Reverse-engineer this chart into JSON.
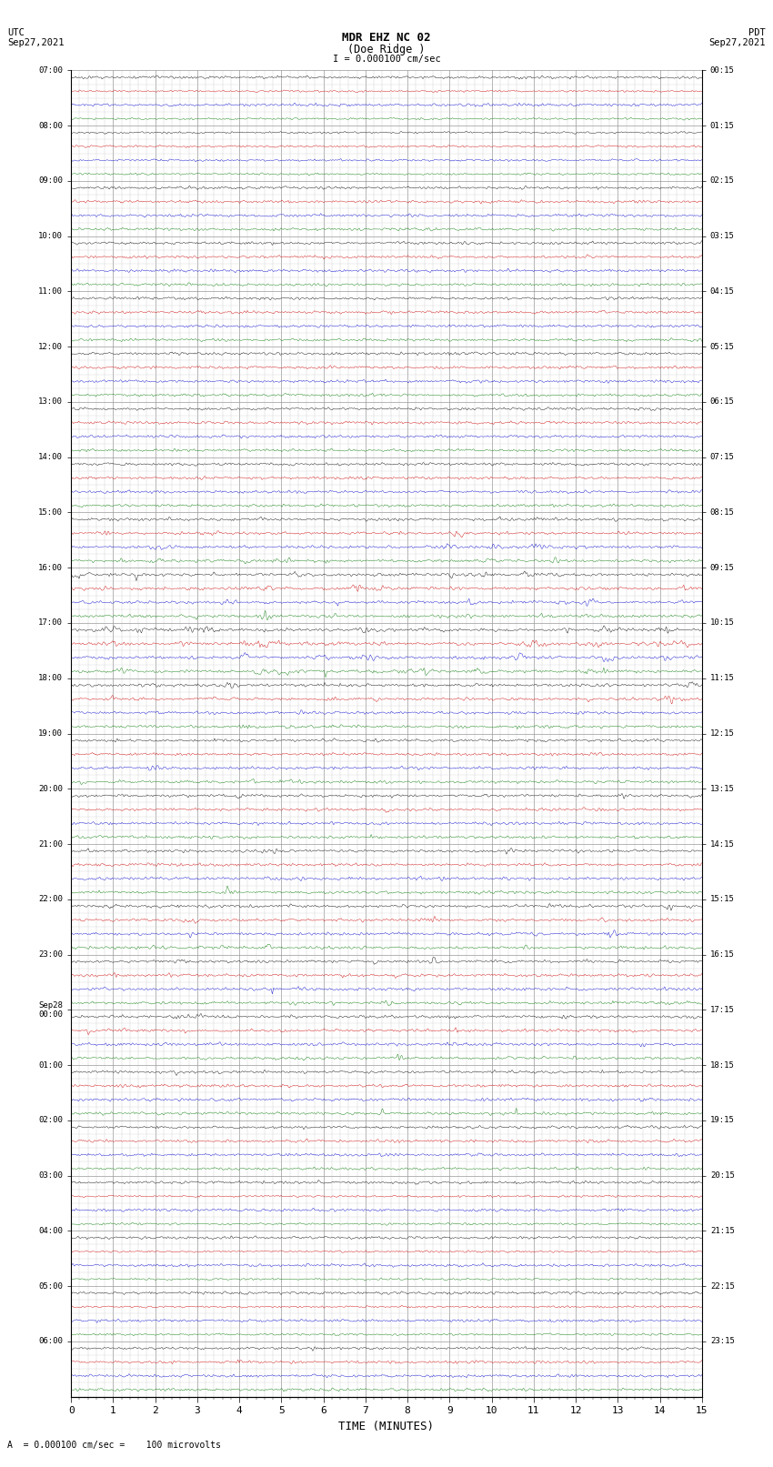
{
  "title_line1": "MDR EHZ NC 02",
  "title_line2": "(Doe Ridge )",
  "scale_label": "I = 0.000100 cm/sec",
  "left_label_line1": "UTC",
  "left_label_line2": "Sep27,2021",
  "right_label_line1": "PDT",
  "right_label_line2": "Sep27,2021",
  "bottom_label": "A  = 0.000100 cm/sec =    100 microvolts",
  "xlabel": "TIME (MINUTES)",
  "utc_labels": [
    "07:00",
    "08:00",
    "09:00",
    "10:00",
    "11:00",
    "12:00",
    "13:00",
    "14:00",
    "15:00",
    "16:00",
    "17:00",
    "18:00",
    "19:00",
    "20:00",
    "21:00",
    "22:00",
    "23:00",
    "Sep28\n00:00",
    "01:00",
    "02:00",
    "03:00",
    "04:00",
    "05:00",
    "06:00"
  ],
  "pdt_labels": [
    "00:15",
    "01:15",
    "02:15",
    "03:15",
    "04:15",
    "05:15",
    "06:15",
    "07:15",
    "08:15",
    "09:15",
    "10:15",
    "11:15",
    "12:15",
    "13:15",
    "14:15",
    "15:15",
    "16:15",
    "17:15",
    "18:15",
    "19:15",
    "20:15",
    "21:15",
    "22:15",
    "23:15"
  ],
  "n_hours": 24,
  "n_traces_per_hour": 4,
  "n_minutes": 15,
  "bg_color": "#ffffff",
  "grid_major_color": "#999999",
  "grid_minor_color": "#cccccc",
  "trace_colors": [
    "#000000",
    "#cc0000",
    "#0000cc",
    "#007700"
  ],
  "figsize": [
    8.5,
    16.13
  ],
  "dpi": 100,
  "amplitude_profile": [
    0.04,
    0.03,
    0.04,
    0.03,
    0.03,
    0.03,
    0.03,
    0.03,
    0.06,
    0.05,
    0.05,
    0.04,
    0.05,
    0.04,
    0.05,
    0.04,
    0.05,
    0.04,
    0.05,
    0.04,
    0.05,
    0.04,
    0.05,
    0.04,
    0.05,
    0.04,
    0.05,
    0.04,
    0.08,
    0.07,
    0.1,
    0.08,
    0.35,
    0.3,
    0.5,
    0.45,
    0.6,
    0.55,
    0.5,
    0.45,
    0.9,
    0.85,
    0.7,
    0.65,
    0.4,
    0.35,
    0.3,
    0.35,
    0.2,
    0.18,
    0.25,
    0.2,
    0.25,
    0.22,
    0.25,
    0.2,
    0.3,
    0.28,
    0.3,
    0.25,
    0.35,
    0.32,
    0.35,
    0.3,
    0.35,
    0.3,
    0.3,
    0.25,
    0.3,
    0.28,
    0.25,
    0.3,
    0.25,
    0.2,
    0.2,
    0.18,
    0.06,
    0.05,
    0.05,
    0.04,
    0.04,
    0.03,
    0.04,
    0.03,
    0.04,
    0.03,
    0.04,
    0.03,
    0.04,
    0.03,
    0.04,
    0.03,
    0.15,
    0.12,
    0.1,
    0.08
  ]
}
